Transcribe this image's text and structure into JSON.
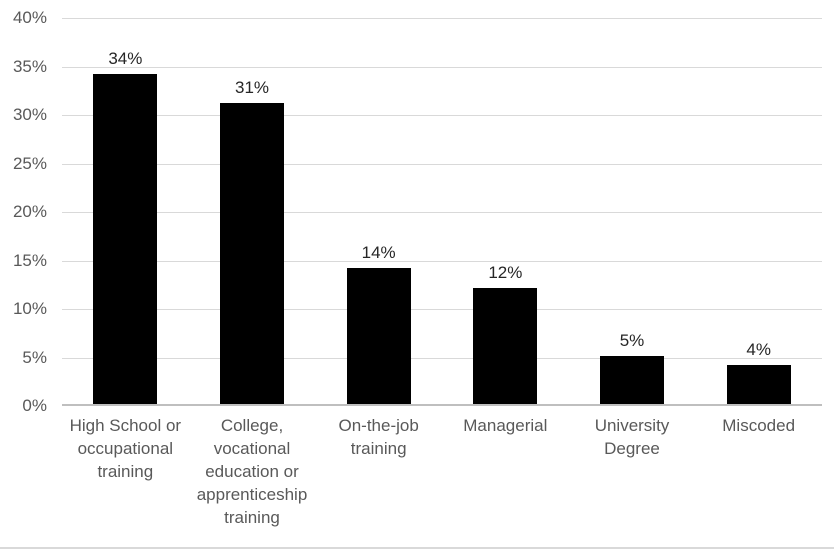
{
  "chart_data": {
    "type": "bar",
    "title": "",
    "xlabel": "",
    "ylabel": "",
    "categories": [
      "High School or occupational training",
      "College, vocational education or apprenticeship training",
      "On-the-job training",
      "Managerial",
      "University Degree",
      "Miscoded"
    ],
    "values": [
      34,
      31,
      14,
      12,
      5,
      4
    ],
    "data_labels": [
      "34%",
      "31%",
      "14%",
      "12%",
      "5%",
      "4%"
    ],
    "ylim": [
      0,
      40
    ],
    "ytick_step": 5,
    "ytick_labels": [
      "0%",
      "5%",
      "10%",
      "15%",
      "20%",
      "25%",
      "30%",
      "35%",
      "40%"
    ],
    "grid": true,
    "legend": false,
    "colors": {
      "bar": "#000000",
      "gridline": "#d9d9d9",
      "axis_line": "#bfbfbf",
      "tick_label": "#595959",
      "category_label": "#595959",
      "data_label": "#262626",
      "background": "#ffffff",
      "chart_border": "#d9d9d9"
    }
  }
}
